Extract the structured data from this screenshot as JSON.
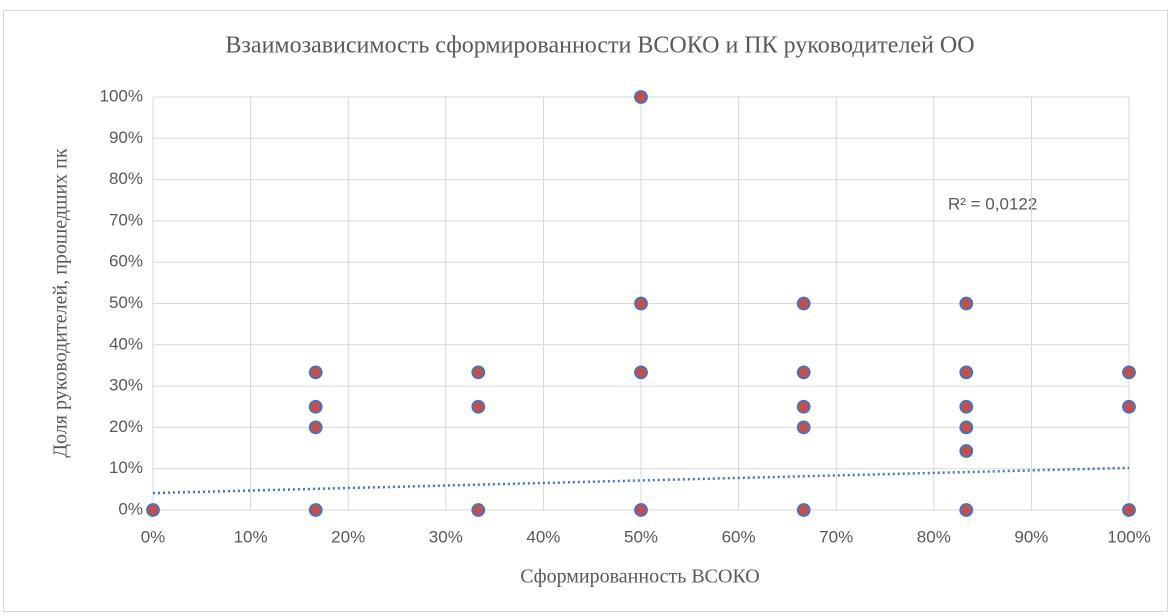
{
  "chart_data": {
    "type": "scatter",
    "title": "Взаимозависимость сформированности ВСОКО и ПК руководителей ОО",
    "x_label": "Сформированность ВСОКО",
    "y_label": "Доля руководителей, прошедших пк",
    "annotation": "R² = 0,0122",
    "x": [
      0,
      16.67,
      16.67,
      16.67,
      16.67,
      33.33,
      33.33,
      33.33,
      50,
      50,
      50,
      50,
      66.67,
      66.67,
      66.67,
      66.67,
      66.67,
      83.33,
      83.33,
      83.33,
      83.33,
      83.33,
      83.33,
      100,
      100,
      100
    ],
    "values": [
      0,
      33.33,
      25,
      20,
      0,
      33.33,
      25,
      0,
      100,
      50,
      33.33,
      0,
      50,
      33.33,
      25,
      20,
      0,
      50,
      33.33,
      25,
      20,
      14.29,
      0,
      33.33,
      25,
      0
    ],
    "marker_color": "#c0504d",
    "marker_edge_color": "#4472c4",
    "trendline": {
      "x": [
        0,
        100
      ],
      "values": [
        4.1,
        10.2
      ],
      "color": "#4472c4"
    },
    "xlim": [
      0,
      100
    ],
    "ylim": [
      0,
      100
    ],
    "xticks": [
      {
        "value": 0,
        "label": "0%"
      },
      {
        "value": 10,
        "label": "10%"
      },
      {
        "value": 20,
        "label": "20%"
      },
      {
        "value": 30,
        "label": "30%"
      },
      {
        "value": 40,
        "label": "40%"
      },
      {
        "value": 50,
        "label": "50%"
      },
      {
        "value": 60,
        "label": "60%"
      },
      {
        "value": 70,
        "label": "70%"
      },
      {
        "value": 80,
        "label": "80%"
      },
      {
        "value": 90,
        "label": "90%"
      },
      {
        "value": 100,
        "label": "100%"
      }
    ],
    "yticks": [
      {
        "value": 0,
        "label": "0%"
      },
      {
        "value": 10,
        "label": "10%"
      },
      {
        "value": 20,
        "label": "20%"
      },
      {
        "value": 30,
        "label": "30%"
      },
      {
        "value": 40,
        "label": "40%"
      },
      {
        "value": 50,
        "label": "50%"
      },
      {
        "value": 60,
        "label": "60%"
      },
      {
        "value": 70,
        "label": "70%"
      },
      {
        "value": 80,
        "label": "80%"
      },
      {
        "value": 90,
        "label": "90%"
      },
      {
        "value": 100,
        "label": "100%"
      }
    ],
    "grid": true
  }
}
